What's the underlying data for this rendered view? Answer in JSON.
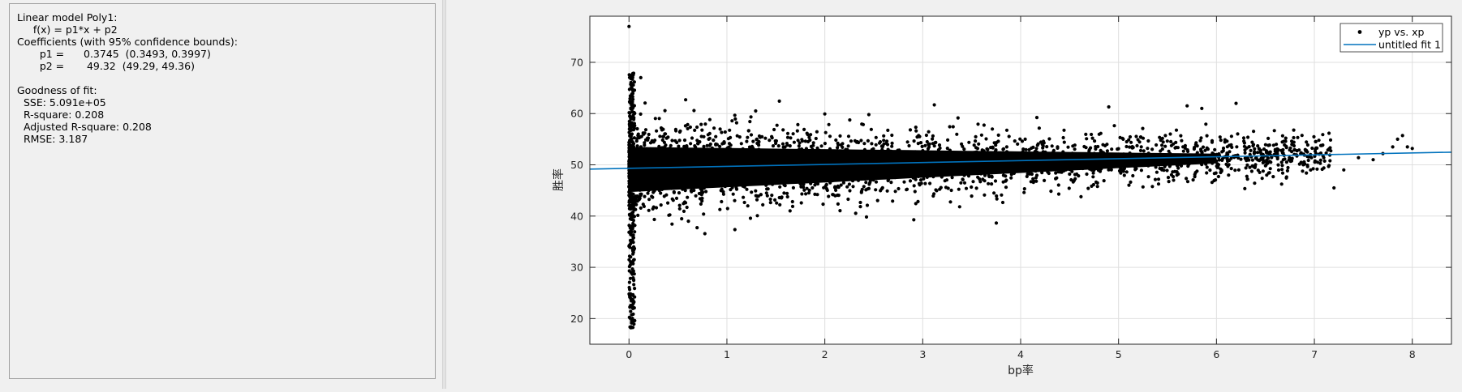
{
  "results": {
    "lines": [
      "Linear model Poly1:",
      "     f(x) = p1*x + p2",
      "Coefficients (with 95% confidence bounds):",
      "       p1 =      0.3745  (0.3493, 0.3997)",
      "       p2 =       49.32  (49.29, 49.36)",
      "",
      "Goodness of fit:",
      "  SSE: 5.091e+05",
      "  R-square: 0.208",
      "  Adjusted R-square: 0.208",
      "  RMSE: 3.187"
    ]
  },
  "chart_data": {
    "type": "scatter",
    "xlabel": "bp率",
    "ylabel": "胜率",
    "xlim": [
      -0.4,
      8.4
    ],
    "ylim": [
      15,
      79
    ],
    "xticks": [
      0,
      1,
      2,
      3,
      4,
      5,
      6,
      7,
      8
    ],
    "yticks": [
      20,
      30,
      40,
      50,
      60,
      70
    ],
    "grid": true,
    "legend_position": "top-right",
    "series": [
      {
        "name": "yp vs. xp",
        "kind": "points",
        "color": "#000000"
      },
      {
        "name": "untitled fit 1",
        "kind": "line",
        "color": "#0072bd",
        "slope": 0.3745,
        "intercept": 49.32
      }
    ]
  }
}
